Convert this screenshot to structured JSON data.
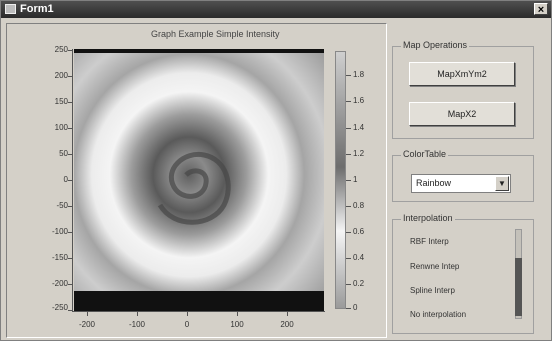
{
  "window": {
    "title": "Form1",
    "close_glyph": "×"
  },
  "graph": {
    "title": "Graph Example Simple Intensity",
    "y_tick_labels": [
      "250",
      "200",
      "150",
      "100",
      "50",
      "0",
      "-50",
      "-100",
      "-150",
      "-200",
      "-250"
    ],
    "x_tick_labels": [
      "-200",
      "-100",
      "0",
      "100",
      "200"
    ],
    "colorbar_labels": [
      "1.8",
      "1.6",
      "1.4",
      "1.2",
      "1",
      "0.8",
      "0.6",
      "0.4",
      "0.2",
      "0"
    ]
  },
  "map_ops": {
    "title": "Map Operations",
    "buttons": [
      "MapXmYm2",
      "MapX2"
    ]
  },
  "color_table": {
    "title": "ColorTable",
    "selected": "Rainbow",
    "arrow_glyph": "▼"
  },
  "interp": {
    "title": "Interpolation",
    "items": [
      "RBF Interp",
      "Renwne Intep",
      "Spline Interp",
      "No interpolation"
    ]
  }
}
